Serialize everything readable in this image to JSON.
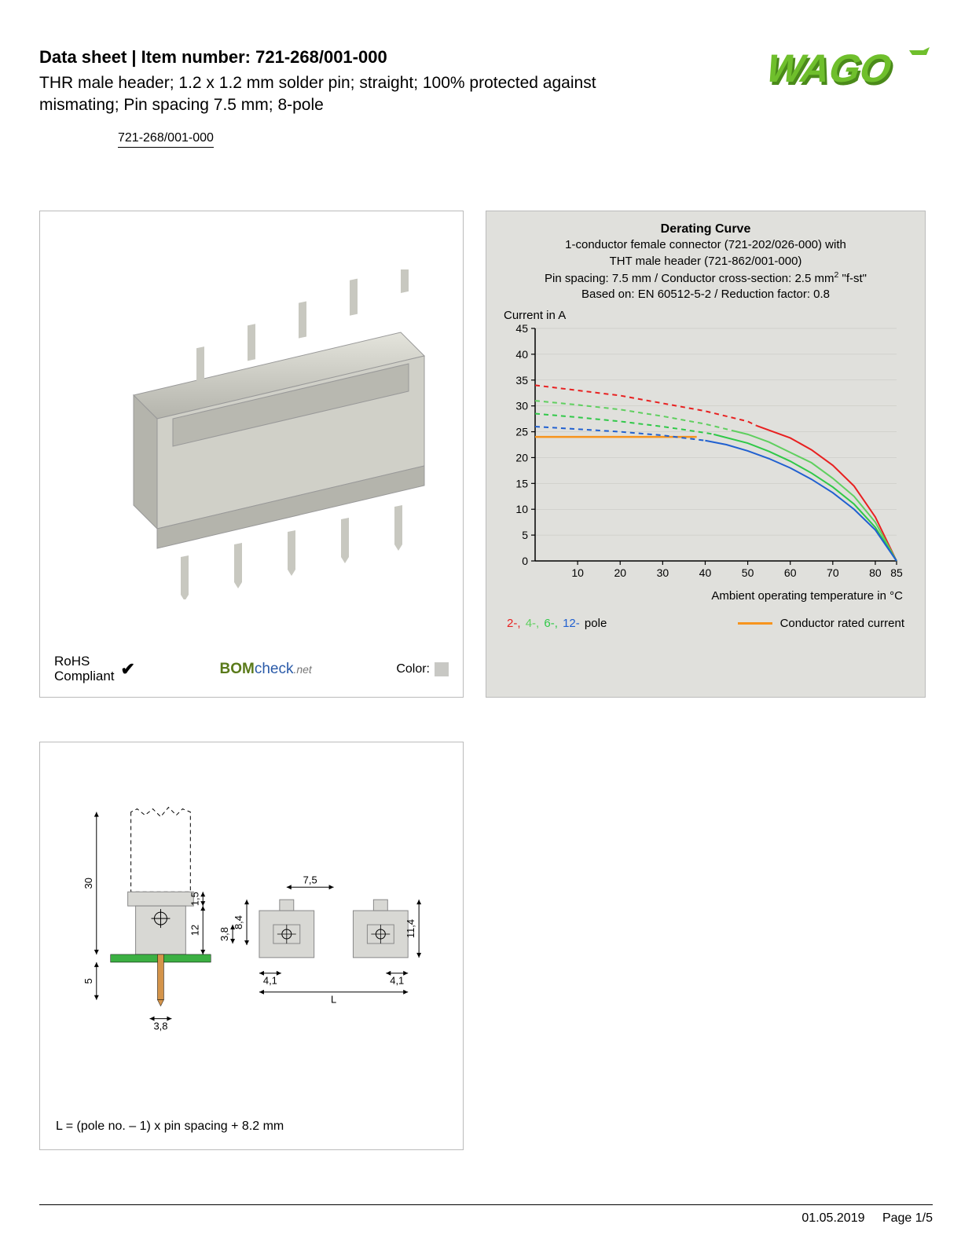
{
  "header": {
    "title_prefix": "Data sheet  |  Item number: ",
    "item_number": "721-268/001-000",
    "subtitle": "THR male header; 1.2 x 1.2 mm solder pin; straight; 100% protected against mismating; Pin spacing 7.5 mm; 8-pole",
    "link_text": "721-268/001-000"
  },
  "logo": {
    "text": "WAGO",
    "fill": "#6fbf2c",
    "shadow": "#4a8a1a"
  },
  "product_panel": {
    "rohs_line1": "RoHS",
    "rohs_line2": "Compliant",
    "check_symbol": "✔",
    "bomcheck_1": "BOM",
    "bomcheck_2": "check",
    "bomcheck_3": ".net",
    "color_label": "Color:",
    "swatch_color": "#c8c8c4",
    "connector_body_color": "#d0d0c8",
    "connector_shadow_color": "#b4b4ac",
    "connector_highlight_color": "#e4e4dc",
    "pin_color": "#c8c8c0"
  },
  "chart": {
    "title": "Derating Curve",
    "sub1a": "1-conductor female connector (721-202/026-000) with",
    "sub1b": "THT male header (721-862/001-000)",
    "sub2_prefix": "Pin spacing: 7.5 mm / Conductor cross-section: 2.5 mm",
    "sub2_suffix": " \"f-st\"",
    "sub3": "Based on: EN 60512-5-2 / Reduction factor: 0.8",
    "y_label": "Current in A",
    "x_label": "Ambient operating temperature in °C",
    "background_color": "#e0e0dc",
    "axis_color": "#000000",
    "grid_color": "#808078",
    "xlim": [
      0,
      85
    ],
    "ylim": [
      0,
      45
    ],
    "xticks": [
      10,
      20,
      30,
      40,
      50,
      60,
      70,
      80,
      85
    ],
    "yticks": [
      0,
      5,
      10,
      15,
      20,
      25,
      30,
      35,
      40,
      45
    ],
    "conductor_rated": {
      "color": "#f7941d",
      "y": 24,
      "x_end": 38,
      "width": 2.5
    },
    "series": {
      "p2": {
        "color": "#e82020",
        "dash_end_x": 52,
        "points": [
          [
            0,
            34
          ],
          [
            10,
            33
          ],
          [
            20,
            32
          ],
          [
            30,
            30.5
          ],
          [
            40,
            29
          ],
          [
            50,
            27
          ],
          [
            52,
            26.2
          ],
          [
            60,
            23.8
          ],
          [
            65,
            21.5
          ],
          [
            70,
            18.5
          ],
          [
            75,
            14.5
          ],
          [
            80,
            8.5
          ],
          [
            85,
            0
          ]
        ]
      },
      "p4": {
        "color": "#5fcf5f",
        "dash_end_x": 47,
        "points": [
          [
            0,
            31
          ],
          [
            10,
            30.2
          ],
          [
            20,
            29.3
          ],
          [
            30,
            28
          ],
          [
            40,
            26.5
          ],
          [
            47,
            25.1
          ],
          [
            50,
            24.5
          ],
          [
            55,
            23
          ],
          [
            60,
            21
          ],
          [
            65,
            19
          ],
          [
            70,
            16
          ],
          [
            75,
            12.5
          ],
          [
            80,
            7.5
          ],
          [
            85,
            0
          ]
        ]
      },
      "p6": {
        "color": "#30c848",
        "dash_end_x": 42,
        "points": [
          [
            0,
            28.5
          ],
          [
            10,
            27.8
          ],
          [
            20,
            27
          ],
          [
            30,
            26
          ],
          [
            40,
            24.8
          ],
          [
            42,
            24.5
          ],
          [
            50,
            22.8
          ],
          [
            55,
            21.2
          ],
          [
            60,
            19.3
          ],
          [
            65,
            17
          ],
          [
            70,
            14.3
          ],
          [
            75,
            11
          ],
          [
            80,
            6.5
          ],
          [
            85,
            0
          ]
        ]
      },
      "p12": {
        "color": "#2060d0",
        "dash_end_x": 40,
        "points": [
          [
            0,
            26
          ],
          [
            10,
            25.5
          ],
          [
            20,
            25
          ],
          [
            30,
            24.3
          ],
          [
            40,
            23.3
          ],
          [
            45,
            22.5
          ],
          [
            50,
            21.3
          ],
          [
            55,
            19.8
          ],
          [
            60,
            18
          ],
          [
            65,
            15.8
          ],
          [
            70,
            13.2
          ],
          [
            75,
            10
          ],
          [
            80,
            6
          ],
          [
            85,
            0
          ]
        ]
      }
    },
    "line_width_solid": 2,
    "line_width_dash": 2,
    "dash_pattern": "6,5",
    "legend": {
      "p2": {
        "label": "2-,",
        "color": "#e82020"
      },
      "p4": {
        "label": "4-,",
        "color": "#5fcf5f"
      },
      "p6": {
        "label": "6-,",
        "color": "#30c848"
      },
      "p12": {
        "label": "12-",
        "color": "#2060d0"
      },
      "poles_suffix": " pole",
      "conductor_label": "Conductor rated current",
      "conductor_color": "#f7941d"
    }
  },
  "drawing": {
    "dims": {
      "h_total": "30",
      "flange": "1,5",
      "body_h": "12",
      "pin_len": "5",
      "pin_d": "3,8",
      "pitch": "7,5",
      "top_h": "8,4",
      "top_h2": "3,8",
      "side_w": "4,1",
      "right_h": "11,4",
      "length_var": "L"
    },
    "caption": "L = (pole no. – 1) x pin spacing + 8.2 mm",
    "colors": {
      "outline": "#000000",
      "body_fill": "#d8d8d4",
      "body_stroke": "#888",
      "pcb": "#3cb043",
      "pin": "#d4944a",
      "dim_text": "#000"
    }
  },
  "footer": {
    "date": "01.05.2019",
    "page": "Page 1/5"
  }
}
